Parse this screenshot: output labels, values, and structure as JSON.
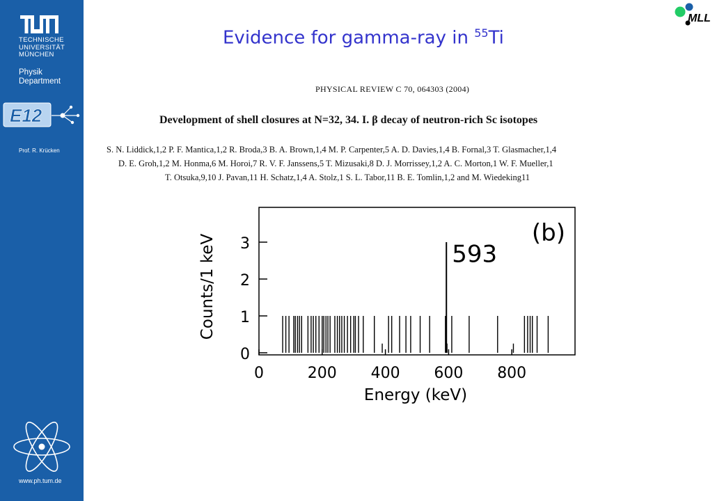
{
  "sidebar": {
    "logo_text": "TUM",
    "university_lines": [
      "TECHNISCHE",
      "UNIVERSITÄT",
      "MÜNCHEN"
    ],
    "department_lines": [
      "Physik",
      "Department"
    ],
    "group_logo_text": "E12",
    "professor": "Prof. R. Krücken",
    "url": "www.ph.tum.de",
    "background_color": "#1a5fa8"
  },
  "header": {
    "title_prefix": "Evidence for gamma-ray in ",
    "title_mass_number": "55",
    "title_element": "Ti",
    "title_color": "#3333cc",
    "partner_logo_text": "MLL"
  },
  "paper": {
    "journal": "PHYSICAL REVIEW C 70, 064303 (2004)",
    "title": "Development of shell closures at N=32, 34. I. β decay of neutron-rich Sc isotopes",
    "authors_lines": [
      "S. N. Liddick,1,2 P. F. Mantica,1,2 R. Broda,3 B. A. Brown,1,4 M. P. Carpenter,5 A. D. Davies,1,4 B. Fornal,3 T. Glasmacher,1,4",
      "D. E. Groh,1,2 M. Honma,6 M. Horoi,7 R. V. F. Janssens,5 T. Mizusaki,8 D. J. Morrissey,1,2 A. C. Morton,1 W. F. Mueller,1",
      "T. Otsuka,9,10 J. Pavan,11 H. Schatz,1,4 A. Stolz,1 S. L. Tabor,11 B. E. Tomlin,1,2 and M. Wiedeking11"
    ]
  },
  "chart_data": {
    "type": "bar",
    "panel_label": "(b)",
    "xlabel": "Energy (keV)",
    "ylabel": "Counts/1 keV",
    "xlim": [
      0,
      1000
    ],
    "ylim": [
      0,
      4
    ],
    "x_ticks": [
      0,
      200,
      400,
      600,
      800
    ],
    "y_ticks": [
      0,
      1,
      2,
      3
    ],
    "annotations": [
      {
        "text": "593",
        "x": 593
      }
    ],
    "series": [
      {
        "x": [
          75,
          85,
          95,
          110,
          115,
          122,
          128,
          135,
          155,
          165,
          172,
          180,
          190,
          200,
          205,
          212,
          218,
          225,
          240,
          248,
          255,
          262,
          270,
          280,
          290,
          300,
          305,
          315,
          330,
          365,
          390,
          410,
          420,
          445,
          465,
          480,
          510,
          540,
          590,
          593,
          595,
          610,
          665,
          755,
          805,
          840,
          850,
          858,
          865,
          880,
          915
        ],
        "y": [
          1,
          1,
          1,
          1,
          1,
          1,
          1,
          1,
          1,
          1,
          1,
          1,
          1,
          1,
          1,
          1,
          1,
          1,
          1,
          1,
          1,
          1,
          1,
          1,
          1,
          1,
          1,
          1,
          1,
          1,
          0.25,
          1,
          1,
          1,
          1,
          1,
          1,
          1,
          1,
          3,
          0.25,
          1,
          1,
          1,
          0.25,
          1,
          1,
          1,
          1,
          1,
          1
        ]
      }
    ]
  }
}
